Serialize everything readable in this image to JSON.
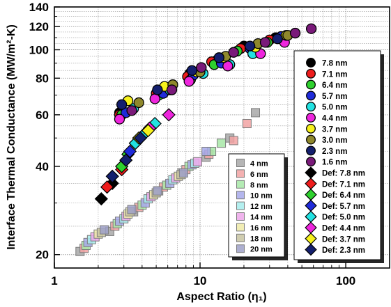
{
  "chart_data": {
    "type": "scatter",
    "title": "",
    "xlabel": "Aspect Ratio (η₁)",
    "ylabel": "Interface Thermal Conductance (MW/m²-K)",
    "xscale": "log",
    "yscale": "log",
    "xlim": [
      1,
      200
    ],
    "ylim": [
      18,
      140
    ],
    "x_ticks": [
      "1",
      "10",
      "100"
    ],
    "y_ticks": [
      "20",
      "40",
      "60",
      "80",
      "100",
      "120",
      "140"
    ],
    "grid": "on (dotted, with minor lines)",
    "legend_main_position": "right",
    "legend_secondary_position": "bottom-center",
    "series": [
      {
        "name": "7.8 nm",
        "marker": "circle",
        "color": "#000000",
        "x": [
          2.8,
          5.3,
          8.5,
          13,
          20,
          33
        ],
        "y": [
          61,
          72,
          83,
          92,
          103,
          110
        ]
      },
      {
        "name": "7.1 nm",
        "marker": "circle",
        "color": "#ee1c1c",
        "x": [
          2.8,
          5,
          8.2,
          12,
          19,
          30
        ],
        "y": [
          60,
          71,
          81,
          91,
          101,
          108
        ]
      },
      {
        "name": "6.4 nm",
        "marker": "circle",
        "color": "#2ed02e",
        "x": [
          2.9,
          5.2,
          8.6,
          12.5,
          18,
          29
        ],
        "y": [
          60,
          70,
          79,
          89,
          99,
          106
        ]
      },
      {
        "name": "5.7 nm",
        "marker": "circle",
        "color": "#1f2bd9",
        "x": [
          3.1,
          5.6,
          9,
          14,
          22,
          36
        ],
        "y": [
          61,
          71,
          82,
          90,
          101,
          111
        ]
      },
      {
        "name": "5.0 nm",
        "marker": "circle",
        "color": "#22e2e2",
        "x": [
          3.5,
          6.2,
          10.5,
          16,
          23
        ],
        "y": [
          63,
          73,
          83,
          89,
          97
        ]
      },
      {
        "name": "4.4 nm",
        "marker": "circle",
        "color": "#ee25dd",
        "x": [
          2.8,
          4.9,
          8.4,
          15.5,
          26,
          38
        ],
        "y": [
          58,
          68,
          78,
          88,
          97,
          106
        ]
      },
      {
        "name": "3.7 nm",
        "marker": "circle",
        "color": "#f6f11c",
        "x": [
          3.2,
          5.7,
          9.5,
          14.5,
          24,
          39
        ],
        "y": [
          67,
          75,
          84,
          94,
          102,
          112
        ]
      },
      {
        "name": "3.0 nm",
        "marker": "circle",
        "color": "#8f882c",
        "x": [
          3.8,
          6.5,
          10,
          15,
          25,
          40
        ],
        "y": [
          66,
          76,
          84,
          95,
          105,
          112
        ]
      },
      {
        "name": "2.3 nm",
        "marker": "circle",
        "color": "#141f6e",
        "x": [
          2.9,
          5.1,
          8.8,
          13.5,
          22,
          34
        ],
        "y": [
          65,
          73,
          85,
          94,
          103,
          109
        ]
      },
      {
        "name": "1.6 nm",
        "marker": "circle",
        "color": "#7a1a7a",
        "x": [
          3.4,
          6.4,
          10.2,
          17,
          28,
          45,
          58
        ],
        "y": [
          62,
          73,
          87,
          98,
          106,
          114,
          118
        ]
      },
      {
        "name": "Def: 7.8 nm",
        "marker": "diamond",
        "color": "#000000",
        "x": [
          2.1,
          2.5
        ],
        "y": [
          31,
          35
        ]
      },
      {
        "name": "Def: 7.1 nm",
        "marker": "diamond",
        "color": "#ee1c1c",
        "x": [
          2.3,
          2.9
        ],
        "y": [
          34,
          39
        ]
      },
      {
        "name": "Def: 6.4 nm",
        "marker": "diamond",
        "color": "#2ed02e",
        "x": [
          2.9,
          3.2
        ],
        "y": [
          40,
          44
        ]
      },
      {
        "name": "Def: 5.7 nm",
        "marker": "diamond",
        "color": "#1f2bd9",
        "x": [
          3.3,
          3.6
        ],
        "y": [
          45,
          48
        ]
      },
      {
        "name": "Def: 5.0 nm",
        "marker": "diamond",
        "color": "#22e2e2",
        "x": [
          3.6,
          4.2,
          4.9
        ],
        "y": [
          48,
          52,
          56
        ]
      },
      {
        "name": "Def: 4.4 nm",
        "marker": "diamond",
        "color": "#ee25dd",
        "x": [
          4.5,
          6.1
        ],
        "y": [
          54,
          60
        ]
      },
      {
        "name": "Def: 3.7 nm",
        "marker": "diamond",
        "color": "#f6f11c",
        "x": [
          3.8,
          4.4
        ],
        "y": [
          50,
          53
        ]
      },
      {
        "name": "Def: 2.3 nm",
        "marker": "diamond",
        "color": "#141f6e",
        "x": [
          2.5,
          3.1,
          3.9
        ],
        "y": [
          37,
          42,
          50
        ]
      },
      {
        "name": "4 nm",
        "marker": "square",
        "color": "#a8a8a8",
        "x": [
          1.5,
          2.4,
          3.5,
          5.2,
          7.5,
          11,
          16,
          24
        ],
        "y": [
          20.5,
          24,
          28,
          33,
          38,
          43,
          50,
          61
        ]
      },
      {
        "name": "6 nm",
        "marker": "square",
        "color": "#f2a3a3",
        "x": [
          1.6,
          2.6,
          3.8,
          5.6,
          8,
          11.5,
          17,
          21
        ],
        "y": [
          21,
          25,
          29,
          34,
          39,
          44,
          49,
          56
        ]
      },
      {
        "name": "8 nm",
        "marker": "square",
        "color": "#a7e8a7",
        "x": [
          1.65,
          2.7,
          4,
          5.9,
          8.4,
          12,
          14
        ],
        "y": [
          21.5,
          25.5,
          29.5,
          34.5,
          40,
          45,
          48
        ]
      },
      {
        "name": "10 nm",
        "marker": "square",
        "color": "#a7a9ea",
        "x": [
          1.7,
          2.8,
          4.2,
          6.2,
          8.8,
          11
        ],
        "y": [
          22,
          26,
          30,
          35,
          40.5,
          45
        ]
      },
      {
        "name": "12 nm",
        "marker": "square",
        "color": "#a7ecec",
        "x": [
          1.8,
          3,
          4.4,
          6.5,
          9.2
        ],
        "y": [
          22.5,
          26.5,
          31,
          36,
          41
        ]
      },
      {
        "name": "14 nm",
        "marker": "square",
        "color": "#eda7ea",
        "x": [
          1.9,
          3.1,
          4.6,
          6.8,
          9.6
        ],
        "y": [
          23,
          27,
          31.5,
          36.5,
          41.5
        ]
      },
      {
        "name": "16 nm",
        "marker": "square",
        "color": "#eeeaa7",
        "x": [
          2,
          3.2,
          4.8,
          7.1
        ],
        "y": [
          23.5,
          27.5,
          32,
          37
        ]
      },
      {
        "name": "18 nm",
        "marker": "square",
        "color": "#c8c4a2",
        "x": [
          2.1,
          3.3,
          5,
          7.4
        ],
        "y": [
          23.8,
          28,
          32.5,
          37.5
        ]
      },
      {
        "name": "20 nm",
        "marker": "square",
        "color": "#9fa1c8",
        "x": [
          2.2,
          3.4,
          5.1,
          7.7
        ],
        "y": [
          24.3,
          28.5,
          33,
          38
        ]
      }
    ]
  }
}
